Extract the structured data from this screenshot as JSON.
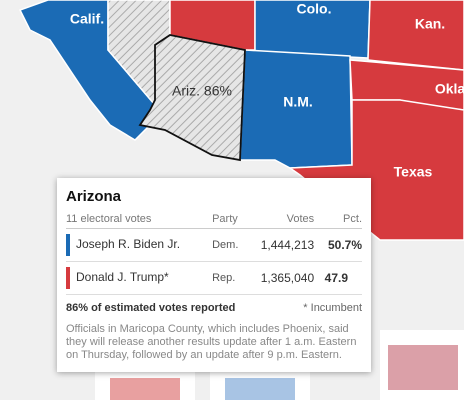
{
  "map": {
    "labels": [
      "Calif.",
      "Colo.",
      "Kan.",
      "Okla",
      "Ariz. 86%",
      "N.M.",
      "Texas"
    ]
  },
  "tooltip": {
    "title": "Arizona",
    "header": [
      "11 electoral votes",
      "Party",
      "Votes",
      "Pct."
    ],
    "rows": [
      [
        "Joseph R. Biden Jr.",
        "Dem.",
        "1,444,213",
        "50.7%"
      ],
      [
        "Donald J. Trump*",
        "Rep.",
        "1,365,040",
        "47.9"
      ]
    ],
    "reported": "86% of estimated votes reported",
    "footnote": "* Incumbent",
    "note": "Officials in Maricopa County, which includes Phoenix, said they will release another results update after 1 a.m. Eastern on Thursday, followed by an update after 9 p.m. Eastern."
  }
}
